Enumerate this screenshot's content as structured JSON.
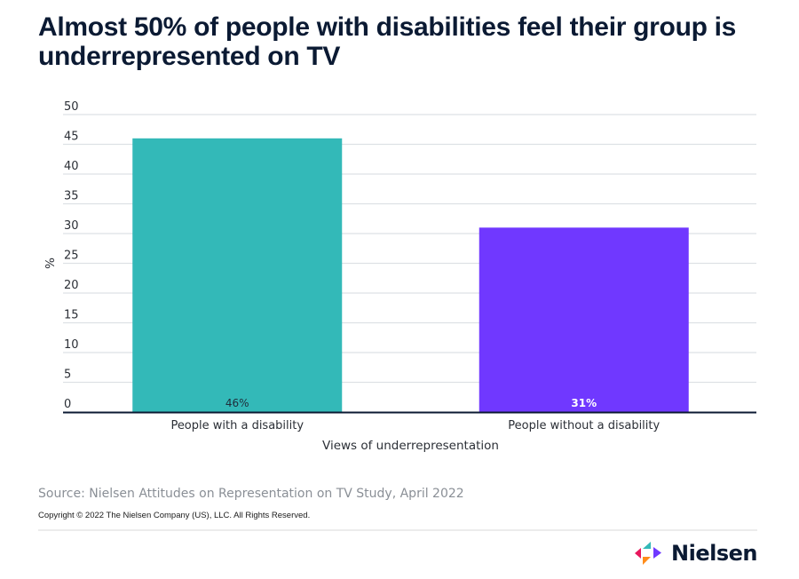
{
  "title": "Almost 50% of people with disabilities feel their group is underrepresented on TV",
  "chart_data": {
    "type": "bar",
    "title": "Almost 50% of people with disabilities feel their group is underrepresented on TV",
    "categories": [
      "People with a disability",
      "People without a disability"
    ],
    "values": [
      46,
      31
    ],
    "data_labels": [
      "46%",
      "31%"
    ],
    "colors": [
      "#33B9B8",
      "#7038FF"
    ],
    "data_label_colors": [
      "#1f2d3a",
      "#ffffff"
    ],
    "xlabel": "Views of underrepresentation",
    "ylabel": "%",
    "ylim": [
      0,
      50
    ],
    "yticks": [
      0,
      5,
      10,
      15,
      20,
      25,
      30,
      35,
      40,
      45,
      50
    ],
    "grid": true,
    "legend": "none"
  },
  "footer": {
    "source": "Source: Nielsen Attitudes on Representation on TV Study, April 2022",
    "copyright": "Copyright © 2022 The Nielsen Company (US), LLC. All Rights Reserved.",
    "logo_text": "Nielsen",
    "logo_colors": [
      "#E8175D",
      "#33B9B8",
      "#FF8C1A",
      "#7038FF"
    ]
  }
}
